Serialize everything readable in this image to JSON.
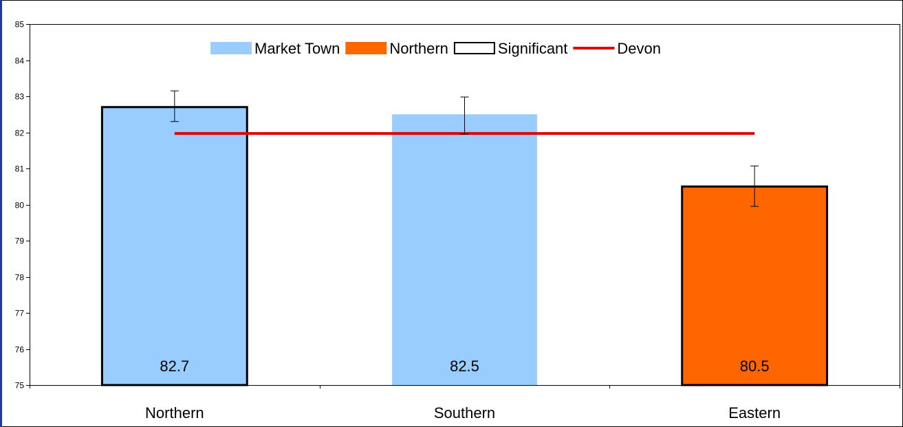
{
  "chart_data": {
    "type": "bar",
    "categories": [
      "Northern",
      "Southern",
      "Eastern"
    ],
    "values": [
      82.7,
      82.5,
      80.5
    ],
    "data_labels": [
      "82.7",
      "82.5",
      "80.5"
    ],
    "bar_series": [
      "Market Town",
      "Market Town",
      "Northern"
    ],
    "significant": [
      true,
      false,
      true
    ],
    "error_bars": [
      [
        82.3,
        83.15
      ],
      [
        81.95,
        82.98
      ],
      [
        79.95,
        81.07
      ]
    ],
    "reference_line": {
      "name": "Devon",
      "value": 81.97
    },
    "legend": [
      {
        "name": "Market Town",
        "kind": "bar",
        "color": "#99ccff"
      },
      {
        "name": "Northern",
        "kind": "bar",
        "color": "#ff6600"
      },
      {
        "name": "Significant",
        "kind": "outline",
        "color": "#000000"
      },
      {
        "name": "Devon",
        "kind": "line",
        "color": "#e00000"
      }
    ],
    "ylim": [
      75,
      85
    ],
    "yticks": [
      "75",
      "76",
      "77",
      "78",
      "79",
      "80",
      "81",
      "82",
      "83",
      "84",
      "85"
    ],
    "xlabel": "",
    "ylabel": "",
    "title": "",
    "legend_position": "top-center",
    "grid": false,
    "colors": {
      "market_town": "#99ccff",
      "northern": "#ff6600",
      "devon": "#e00000",
      "frame_left": "#1f3a93"
    }
  }
}
